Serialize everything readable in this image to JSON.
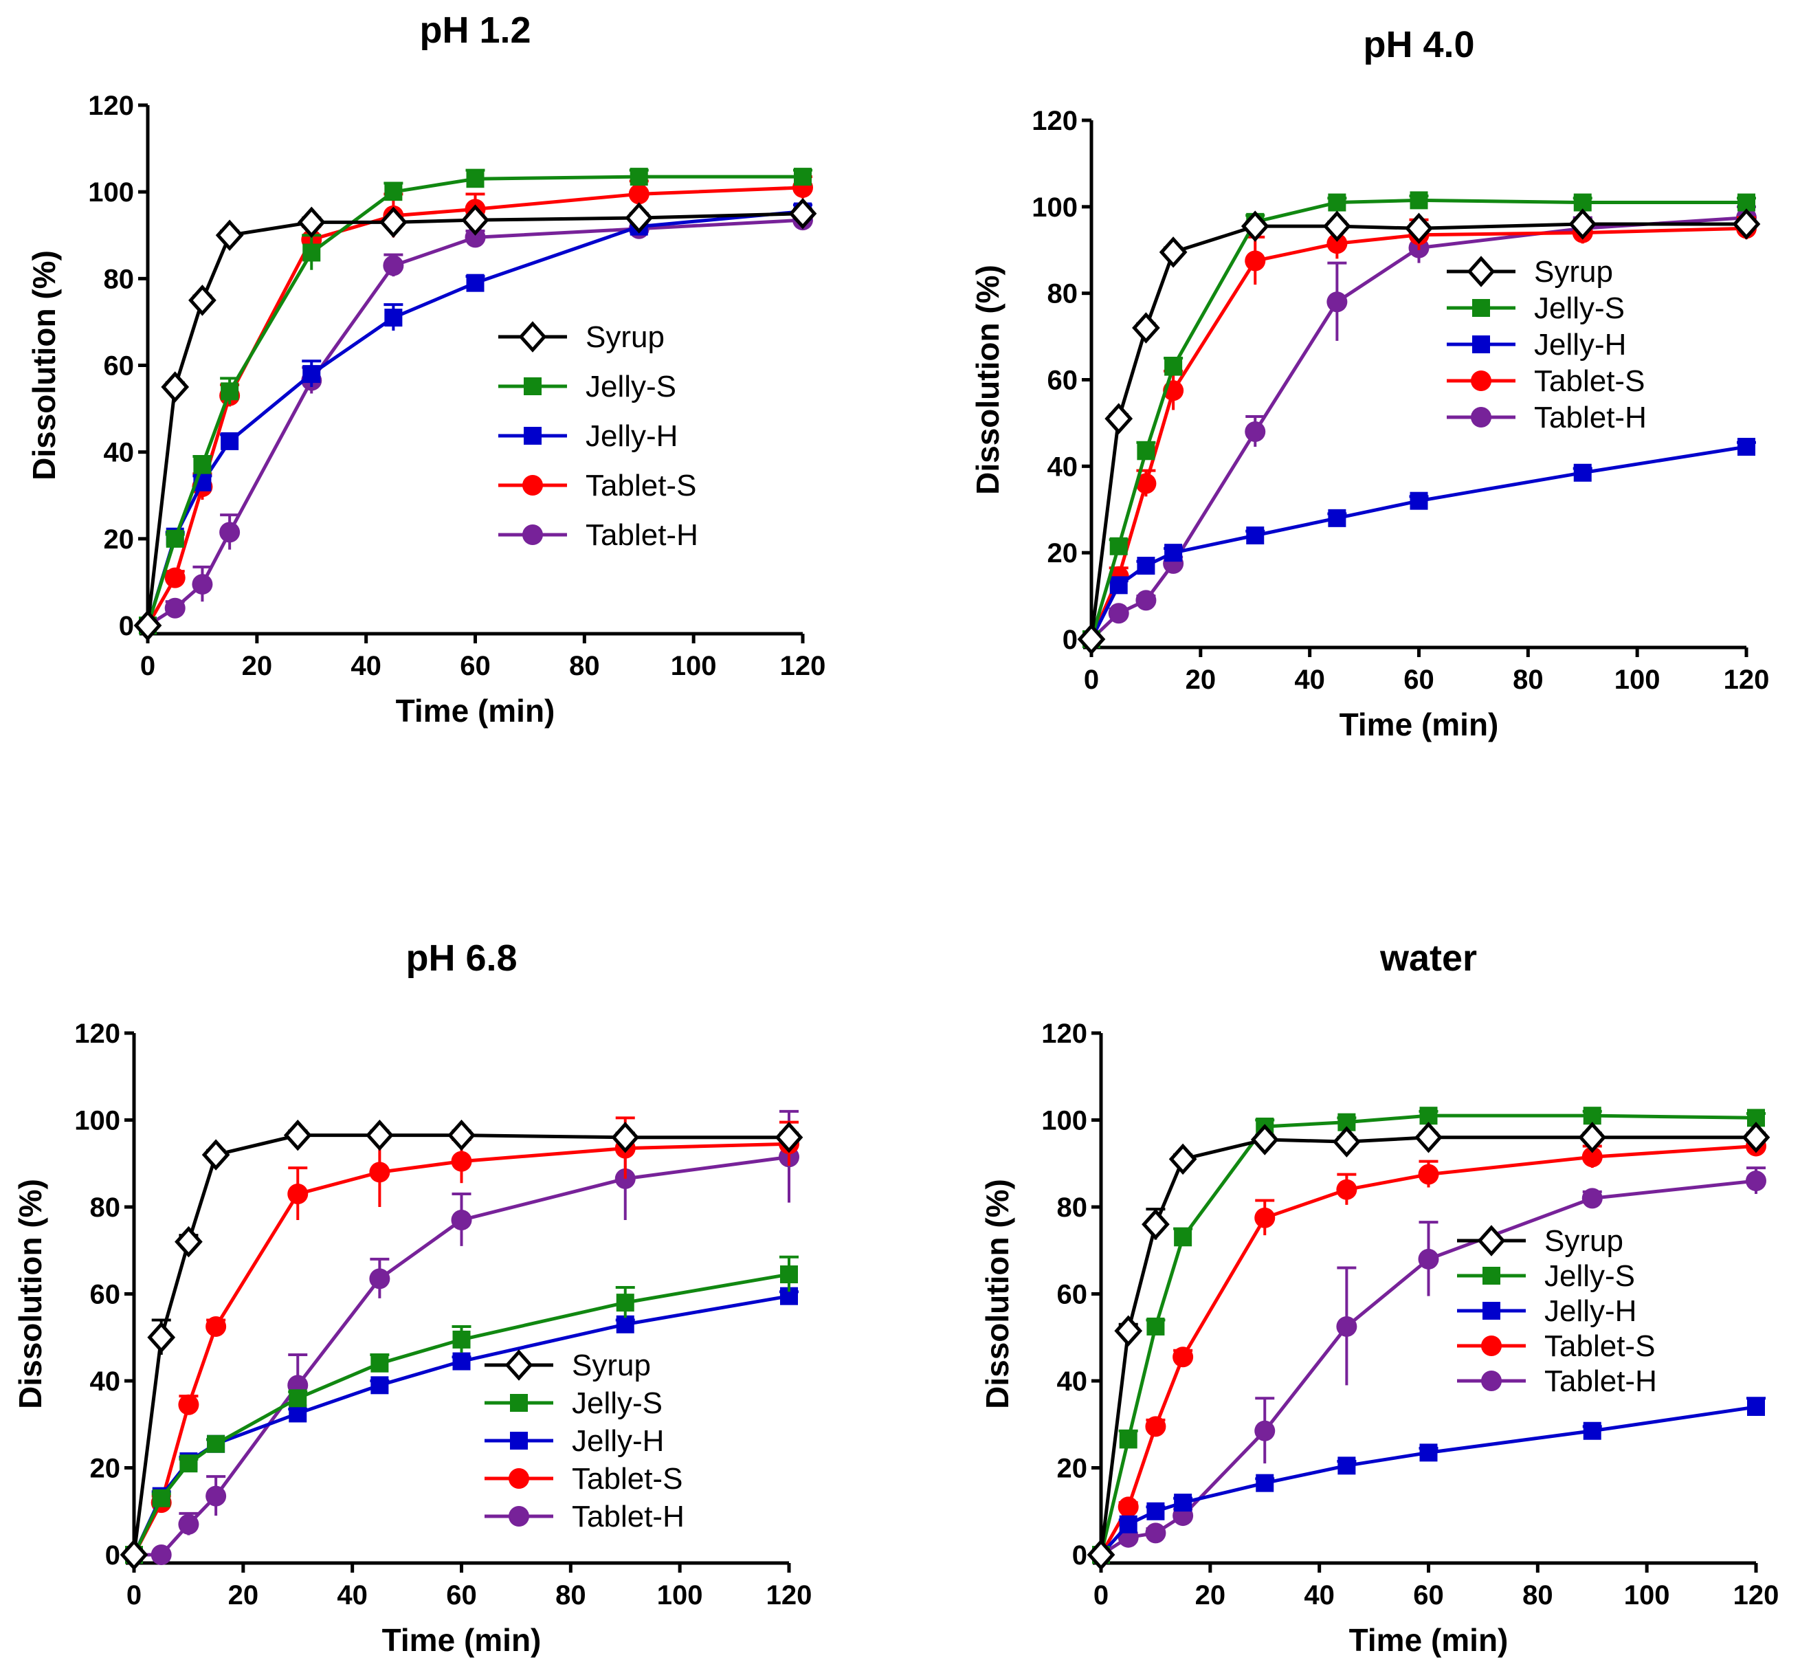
{
  "chart_data": [
    {
      "type": "line",
      "title": "pH 1.2",
      "xlabel": "Time (min)",
      "ylabel": "Dissolution (%)",
      "xlim": [
        0,
        120
      ],
      "ylim": [
        0,
        120
      ],
      "xticks": [
        "0",
        "20",
        "40",
        "60",
        "80",
        "100",
        "120"
      ],
      "yticks": [
        "0",
        "20",
        "40",
        "60",
        "80",
        "100",
        "120"
      ],
      "x": [
        0,
        5,
        10,
        15,
        30,
        45,
        60,
        90,
        120
      ],
      "legend_position": "center-right",
      "series": [
        {
          "name": "Syrup",
          "color": "#000000",
          "marker": "diamond-open",
          "values": [
            0,
            55,
            75,
            90,
            93,
            93,
            93.5,
            94,
            95
          ],
          "errors": [
            0,
            1,
            1,
            1,
            1,
            1,
            1,
            1,
            1
          ]
        },
        {
          "name": "Jelly-S",
          "color": "#118811",
          "marker": "square",
          "values": [
            0,
            20,
            37,
            54,
            86,
            100,
            103,
            103.5,
            103.5
          ],
          "errors": [
            0,
            1,
            2,
            3,
            4,
            2,
            2,
            1.5,
            1.5
          ]
        },
        {
          "name": "Jelly-H",
          "color": "#0000cc",
          "marker": "square",
          "values": [
            0,
            20.5,
            33,
            42.5,
            58,
            71,
            79,
            92,
            95.5
          ],
          "errors": [
            0,
            1,
            1.5,
            1.5,
            3,
            3,
            1.5,
            1.5,
            1.5
          ]
        },
        {
          "name": "Tablet-S",
          "color": "#ff0000",
          "marker": "circle",
          "values": [
            0,
            11,
            32,
            53,
            89,
            94.5,
            96,
            99.5,
            101
          ],
          "errors": [
            0,
            1.5,
            3,
            2.5,
            3,
            5,
            3.5,
            3,
            2.5
          ]
        },
        {
          "name": "Tablet-H",
          "color": "#772299",
          "marker": "circle",
          "values": [
            0,
            4,
            9.5,
            21.5,
            56.5,
            83,
            89.5,
            91.5,
            93.5
          ],
          "errors": [
            0,
            1.5,
            4,
            4,
            3,
            2.5,
            1.5,
            1.5,
            1.5
          ]
        }
      ]
    },
    {
      "type": "line",
      "title": "pH 4.0",
      "xlabel": "Time (min)",
      "ylabel": "Dissolution (%)",
      "xlim": [
        0,
        120
      ],
      "ylim": [
        0,
        120
      ],
      "xticks": [
        "0",
        "20",
        "40",
        "60",
        "80",
        "100",
        "120"
      ],
      "yticks": [
        "0",
        "20",
        "40",
        "60",
        "80",
        "100",
        "120"
      ],
      "x": [
        0,
        5,
        10,
        15,
        30,
        45,
        60,
        90,
        120
      ],
      "legend_position": "top-right",
      "series": [
        {
          "name": "Syrup",
          "color": "#000000",
          "marker": "diamond-open",
          "values": [
            0,
            51,
            72,
            89.5,
            95.5,
            95.5,
            95,
            96,
            96
          ],
          "errors": [
            0,
            1,
            1,
            1,
            1,
            1,
            1,
            1,
            1
          ]
        },
        {
          "name": "Jelly-S",
          "color": "#118811",
          "marker": "square",
          "values": [
            0,
            21.5,
            43.5,
            63,
            96.5,
            101,
            101.5,
            101,
            101
          ],
          "errors": [
            0,
            1.5,
            2,
            2,
            1.5,
            1,
            1,
            1,
            1
          ]
        },
        {
          "name": "Jelly-H",
          "color": "#0000cc",
          "marker": "square",
          "values": [
            0,
            12.5,
            17,
            20,
            24,
            28,
            32,
            38.5,
            44.5
          ],
          "errors": [
            0,
            1,
            1,
            1,
            1,
            1,
            1,
            1,
            1
          ]
        },
        {
          "name": "Tablet-S",
          "color": "#ff0000",
          "marker": "circle",
          "values": [
            0,
            14.5,
            36,
            57.5,
            87.5,
            91.5,
            93.5,
            94,
            95
          ],
          "errors": [
            0,
            2,
            3,
            4.5,
            5.5,
            3.5,
            3.5,
            2.5,
            2.5
          ]
        },
        {
          "name": "Tablet-H",
          "color": "#772299",
          "marker": "circle",
          "values": [
            0,
            6,
            9,
            17.5,
            48,
            78,
            90.5,
            95,
            97.5
          ],
          "errors": [
            0,
            1,
            1,
            1.5,
            3.5,
            9,
            3.5,
            2.5,
            2.5
          ]
        }
      ]
    },
    {
      "type": "line",
      "title": "pH 6.8",
      "xlabel": "Time (min)",
      "ylabel": "Dissolution (%)",
      "xlim": [
        0,
        120
      ],
      "ylim": [
        0,
        120
      ],
      "xticks": [
        "0",
        "20",
        "40",
        "60",
        "80",
        "100",
        "120"
      ],
      "yticks": [
        "0",
        "20",
        "40",
        "60",
        "80",
        "100",
        "120"
      ],
      "x": [
        0,
        5,
        10,
        15,
        30,
        45,
        60,
        90,
        120
      ],
      "legend_position": "bottom-right",
      "series": [
        {
          "name": "Syrup",
          "color": "#000000",
          "marker": "diamond-open",
          "values": [
            0,
            50,
            72,
            92,
            96.5,
            96.5,
            96.5,
            96,
            96
          ],
          "errors": [
            0,
            4,
            1.5,
            1,
            1,
            1,
            1,
            1,
            1
          ]
        },
        {
          "name": "Jelly-S",
          "color": "#118811",
          "marker": "square",
          "values": [
            0,
            13,
            21,
            25.5,
            36,
            44,
            49.5,
            58,
            64.5
          ],
          "errors": [
            0,
            1,
            1,
            1,
            1.5,
            2,
            3,
            3.5,
            4
          ]
        },
        {
          "name": "Jelly-H",
          "color": "#0000cc",
          "marker": "square",
          "values": [
            0,
            13.5,
            21.5,
            25.5,
            32.5,
            39,
            44.5,
            53,
            59.5
          ],
          "errors": [
            0,
            1,
            1,
            1,
            1,
            1,
            1,
            1,
            1
          ]
        },
        {
          "name": "Tablet-S",
          "color": "#ff0000",
          "marker": "circle",
          "values": [
            0,
            12,
            34.5,
            52.5,
            83,
            88,
            90.5,
            93.5,
            94.5
          ],
          "errors": [
            0,
            1.5,
            2,
            1.5,
            6,
            8,
            5,
            7,
            5
          ]
        },
        {
          "name": "Tablet-H",
          "color": "#772299",
          "marker": "circle",
          "values": [
            0,
            0,
            7,
            13.5,
            39,
            63.5,
            77,
            86.5,
            91.5
          ],
          "errors": [
            0,
            0,
            2.5,
            4.5,
            7,
            4.5,
            6,
            9.5,
            10.5
          ]
        }
      ]
    },
    {
      "type": "line",
      "title": "water",
      "xlabel": "Time (min)",
      "ylabel": "Dissolution (%)",
      "xlim": [
        0,
        120
      ],
      "ylim": [
        0,
        120
      ],
      "xticks": [
        "0",
        "20",
        "40",
        "60",
        "80",
        "100",
        "120"
      ],
      "yticks": [
        "0",
        "20",
        "40",
        "60",
        "80",
        "100",
        "120"
      ],
      "x": [
        0,
        5,
        10,
        15,
        30,
        45,
        60,
        90,
        120
      ],
      "legend_position": "center-right",
      "series": [
        {
          "name": "Syrup",
          "color": "#000000",
          "marker": "diamond-open",
          "values": [
            0,
            51.5,
            76,
            91,
            95.5,
            95,
            96,
            96,
            96
          ],
          "errors": [
            0,
            1.5,
            3.5,
            1,
            1,
            1,
            1,
            1,
            1
          ]
        },
        {
          "name": "Jelly-S",
          "color": "#118811",
          "marker": "square",
          "values": [
            0,
            26.5,
            52.5,
            73,
            98.5,
            99.5,
            101,
            101,
            100.5
          ],
          "errors": [
            0,
            2,
            1.5,
            2,
            1.5,
            1,
            1,
            1,
            1
          ]
        },
        {
          "name": "Jelly-H",
          "color": "#0000cc",
          "marker": "square",
          "values": [
            0,
            7,
            10,
            12,
            16.5,
            20.5,
            23.5,
            28.5,
            34
          ],
          "errors": [
            0,
            1,
            1,
            1,
            1,
            1,
            1,
            1,
            2
          ]
        },
        {
          "name": "Tablet-S",
          "color": "#ff0000",
          "marker": "circle",
          "values": [
            0,
            11,
            29.5,
            45.5,
            77.5,
            84,
            87.5,
            91.5,
            94
          ],
          "errors": [
            0,
            1,
            1.5,
            1.5,
            4,
            3.5,
            3,
            2.5,
            1.5
          ]
        },
        {
          "name": "Tablet-H",
          "color": "#772299",
          "marker": "circle",
          "values": [
            0,
            4,
            5,
            9,
            28.5,
            52.5,
            68,
            82,
            86
          ],
          "errors": [
            0,
            1,
            1,
            1.5,
            7.5,
            13.5,
            8.5,
            1.5,
            3
          ]
        }
      ]
    }
  ]
}
